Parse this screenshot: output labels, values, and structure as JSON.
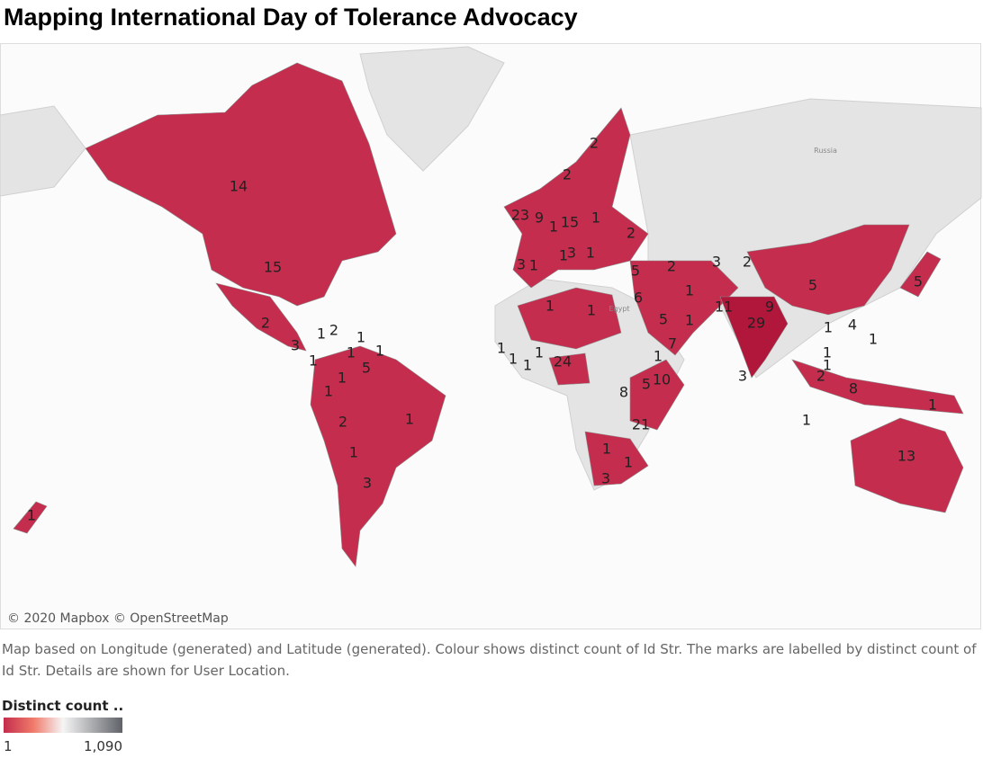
{
  "header": {
    "title": "Mapping International Day of Tolerance Advocacy"
  },
  "map": {
    "attribution": "© 2020 Mapbox © OpenStreetMap",
    "place_names": [
      "Russia",
      "Egypt"
    ],
    "labels": [
      14,
      15,
      2,
      3,
      1,
      2,
      1,
      1,
      1,
      1,
      5,
      1,
      1,
      2,
      1,
      1,
      3,
      1,
      2,
      2,
      2,
      3,
      9,
      1,
      15,
      1,
      2,
      3,
      1,
      1,
      3,
      1,
      5,
      2,
      3,
      2,
      1,
      6,
      1,
      1,
      5,
      1,
      11,
      9,
      29,
      5,
      1,
      4,
      1,
      5,
      7,
      1,
      1,
      1,
      1,
      1,
      24,
      10,
      5,
      8,
      21,
      3,
      1,
      1,
      2,
      8,
      1,
      1,
      1,
      1,
      3,
      13
    ]
  },
  "caption": "Map based on Longitude (generated) and Latitude (generated).  Colour shows distinct count of Id Str.  The marks are labelled by distinct count of Id Str.  Details are shown for User Location.",
  "legend": {
    "title": "Distinct count ..",
    "min": 1,
    "max": {
      "value": 1090,
      "label": "1,090"
    }
  }
}
